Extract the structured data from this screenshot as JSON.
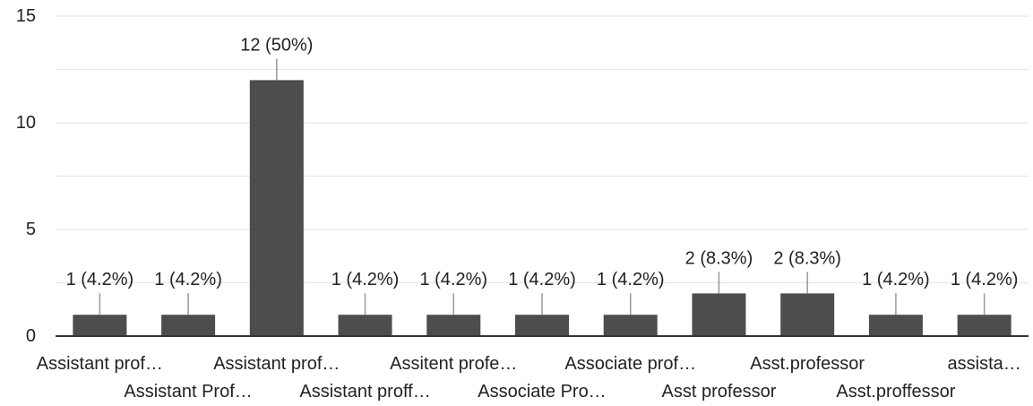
{
  "chart_data": {
    "type": "bar",
    "categories": [
      "Assistant prof…",
      "Assistant Prof…",
      "Assistant prof…",
      "Assistant proff…",
      "Assitent profe…",
      "Associate Pro…",
      "Associate prof…",
      "Asst professor",
      "Asst.professor",
      "Asst.proffessor",
      "assista…"
    ],
    "values": [
      1,
      1,
      12,
      1,
      1,
      1,
      1,
      2,
      2,
      1,
      1
    ],
    "data_labels": [
      "1 (4.2%)",
      "1 (4.2%)",
      "12 (50%)",
      "1 (4.2%)",
      "1 (4.2%)",
      "1 (4.2%)",
      "1 (4.2%)",
      "2 (8.3%)",
      "2 (8.3%)",
      "1 (4.2%)",
      "1 (4.2%)"
    ],
    "title": "",
    "xlabel": "",
    "ylabel": "",
    "ylim": [
      0,
      15
    ],
    "yticks": [
      0,
      5,
      10,
      15
    ],
    "grid": true,
    "bar_color": "#4d4d4d",
    "grid_color": "#e6e6e6",
    "axis_color": "#333333",
    "label_line_color": "#999999"
  }
}
